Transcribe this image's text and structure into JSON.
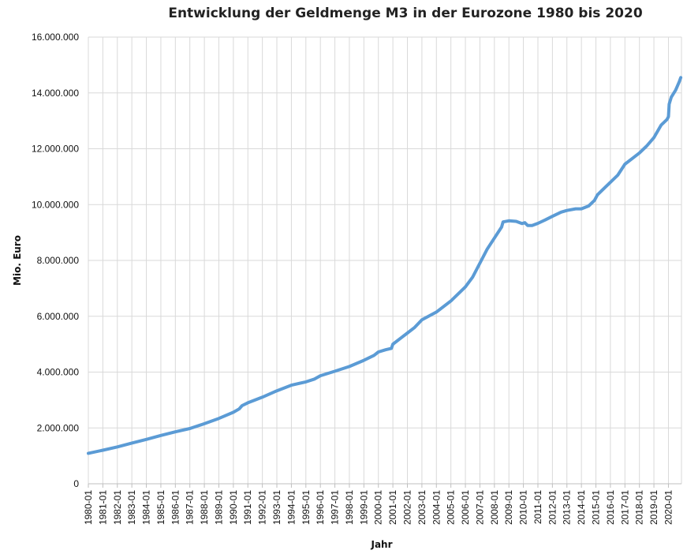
{
  "chart_data": {
    "type": "line",
    "title": "Entwicklung der Geldmenge M3 in der Eurozone 1980 bis 2020",
    "xlabel": "Jahr",
    "ylabel": "Mio. Euro",
    "ylim": [
      0,
      16000000
    ],
    "y_ticks": [
      {
        "value": 0,
        "label": "0"
      },
      {
        "value": 2000000,
        "label": "2.000.000"
      },
      {
        "value": 4000000,
        "label": "4.000.000"
      },
      {
        "value": 6000000,
        "label": "6.000.000"
      },
      {
        "value": 8000000,
        "label": "8.000.000"
      },
      {
        "value": 10000000,
        "label": "10.000.000"
      },
      {
        "value": 12000000,
        "label": "12.000.000"
      },
      {
        "value": 14000000,
        "label": "14.000.000"
      },
      {
        "value": 16000000,
        "label": "16.000.000"
      }
    ],
    "x_range": [
      1980.0,
      2020.9
    ],
    "x_tick_labels": [
      "1980-01",
      "1981-01",
      "1982-01",
      "1983-01",
      "1984-01",
      "1985-01",
      "1986-01",
      "1987-01",
      "1988-01",
      "1989-01",
      "1990-01",
      "1991-01",
      "1992-01",
      "1993-01",
      "1994-01",
      "1995-01",
      "1996-01",
      "1997-01",
      "1998-01",
      "1999-01",
      "2000-01",
      "2001-01",
      "2002-01",
      "2003-01",
      "2004-01",
      "2005-01",
      "2006-01",
      "2007-01",
      "2008-01",
      "2009-01",
      "2010-01",
      "2011-01",
      "2012-01",
      "2013-01",
      "2014-01",
      "2015-01",
      "2016-01",
      "2017-01",
      "2018-01",
      "2019-01",
      "2020-01"
    ],
    "grid": true,
    "series": [
      {
        "name": "Geldmenge M3",
        "color": "#5B9BD5",
        "points": [
          [
            1980.0,
            1090000
          ],
          [
            1981.0,
            1200000
          ],
          [
            1982.0,
            1320000
          ],
          [
            1983.0,
            1460000
          ],
          [
            1984.0,
            1590000
          ],
          [
            1985.0,
            1730000
          ],
          [
            1986.0,
            1860000
          ],
          [
            1987.0,
            1980000
          ],
          [
            1988.0,
            2150000
          ],
          [
            1989.0,
            2340000
          ],
          [
            1990.0,
            2560000
          ],
          [
            1990.4,
            2680000
          ],
          [
            1990.6,
            2800000
          ],
          [
            1991.0,
            2900000
          ],
          [
            1992.0,
            3100000
          ],
          [
            1993.0,
            3330000
          ],
          [
            1994.0,
            3530000
          ],
          [
            1995.0,
            3650000
          ],
          [
            1995.6,
            3750000
          ],
          [
            1996.0,
            3870000
          ],
          [
            1997.0,
            4030000
          ],
          [
            1998.0,
            4200000
          ],
          [
            1999.0,
            4420000
          ],
          [
            1999.7,
            4600000
          ],
          [
            2000.0,
            4720000
          ],
          [
            2000.5,
            4800000
          ],
          [
            2000.9,
            4850000
          ],
          [
            2001.0,
            5000000
          ],
          [
            2002.0,
            5400000
          ],
          [
            2002.5,
            5600000
          ],
          [
            2003.0,
            5870000
          ],
          [
            2004.0,
            6150000
          ],
          [
            2005.0,
            6550000
          ],
          [
            2006.0,
            7050000
          ],
          [
            2006.5,
            7400000
          ],
          [
            2007.0,
            7900000
          ],
          [
            2007.5,
            8400000
          ],
          [
            2008.0,
            8800000
          ],
          [
            2008.5,
            9200000
          ],
          [
            2008.6,
            9380000
          ],
          [
            2009.0,
            9420000
          ],
          [
            2009.5,
            9400000
          ],
          [
            2009.9,
            9320000
          ],
          [
            2010.1,
            9350000
          ],
          [
            2010.3,
            9250000
          ],
          [
            2010.6,
            9250000
          ],
          [
            2011.0,
            9330000
          ],
          [
            2011.5,
            9450000
          ],
          [
            2012.0,
            9580000
          ],
          [
            2012.6,
            9730000
          ],
          [
            2013.0,
            9790000
          ],
          [
            2013.6,
            9850000
          ],
          [
            2014.0,
            9850000
          ],
          [
            2014.5,
            9950000
          ],
          [
            2014.9,
            10150000
          ],
          [
            2015.1,
            10350000
          ],
          [
            2016.0,
            10800000
          ],
          [
            2016.5,
            11050000
          ],
          [
            2017.0,
            11450000
          ],
          [
            2017.5,
            11650000
          ],
          [
            2018.0,
            11850000
          ],
          [
            2018.5,
            12100000
          ],
          [
            2019.0,
            12400000
          ],
          [
            2019.5,
            12850000
          ],
          [
            2019.9,
            13050000
          ],
          [
            2020.0,
            13150000
          ],
          [
            2020.05,
            13600000
          ],
          [
            2020.2,
            13850000
          ],
          [
            2020.5,
            14100000
          ],
          [
            2020.75,
            14400000
          ],
          [
            2020.85,
            14550000
          ]
        ]
      }
    ]
  }
}
